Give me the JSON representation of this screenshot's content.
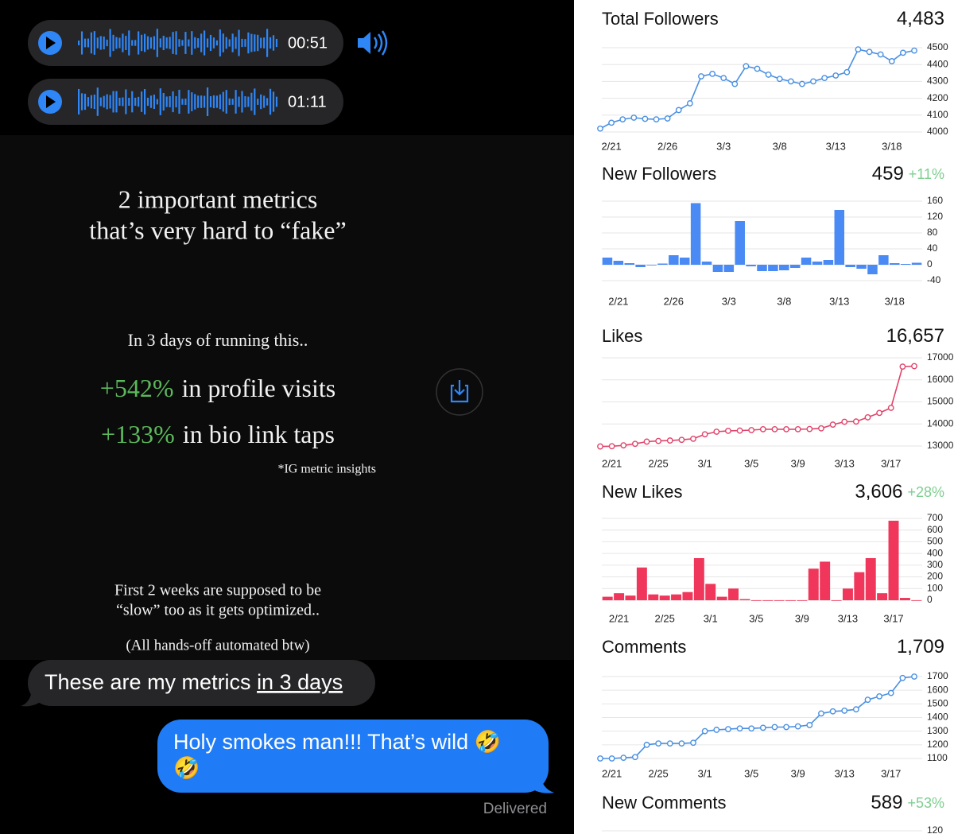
{
  "audio_messages": [
    {
      "duration": "00:51"
    },
    {
      "duration": "01:11"
    }
  ],
  "card": {
    "headline": [
      "2 important metrics",
      "that’s very hard to “fake”"
    ],
    "intro": "In 3 days of running this..",
    "stats": [
      {
        "change": "+542%",
        "label": "in profile visits"
      },
      {
        "change": "+133%",
        "label": "in bio link taps"
      }
    ],
    "footnote": "*IG metric insights",
    "note": [
      "First 2 weeks are supposed to be",
      "“slow” too as it gets optimized.."
    ],
    "aside": "(All hands-off automated btw)"
  },
  "messages": [
    {
      "text": "These are my metrics ",
      "underlined": "in 3 days"
    },
    {
      "lines": [
        "Holy smokes man!!!  That’s wild 🤣",
        "🤣"
      ]
    }
  ],
  "status": "Delivered",
  "chart_data": [
    {
      "type": "line",
      "title": "Total Followers",
      "total": "4,483",
      "color": "#4a90e2",
      "categories": [
        null,
        "2/21",
        null,
        null,
        null,
        null,
        "2/26",
        null,
        null,
        null,
        null,
        "3/3",
        null,
        null,
        null,
        null,
        "3/8",
        null,
        null,
        null,
        null,
        "3/13",
        null,
        null,
        null,
        null,
        "3/18",
        null,
        null
      ],
      "values": [
        4020,
        4055,
        4075,
        4085,
        4078,
        4075,
        4080,
        4130,
        4170,
        4330,
        4345,
        4320,
        4285,
        4390,
        4375,
        4340,
        4315,
        4300,
        4285,
        4300,
        4320,
        4335,
        4355,
        4490,
        4475,
        4460,
        4420,
        4470,
        4483
      ],
      "ylim": [
        4000,
        4500
      ],
      "yticks": [
        4000,
        4100,
        4200,
        4300,
        4400,
        4500
      ],
      "grid": true
    },
    {
      "type": "bar",
      "title": "New Followers",
      "total": "459",
      "change": "+11%",
      "color": "#4a8af4",
      "categories": [
        null,
        "2/21",
        null,
        null,
        null,
        null,
        "2/26",
        null,
        null,
        null,
        null,
        "3/3",
        null,
        null,
        null,
        null,
        "3/8",
        null,
        null,
        null,
        null,
        "3/13",
        null,
        null,
        null,
        null,
        "3/18",
        null,
        null
      ],
      "values": [
        18,
        10,
        4,
        -6,
        0,
        3,
        24,
        18,
        155,
        8,
        -18,
        -18,
        110,
        -4,
        -16,
        -16,
        -14,
        -8,
        18,
        8,
        12,
        138,
        -6,
        -10,
        -24,
        24,
        4,
        2,
        5
      ],
      "ylim": [
        -40,
        160
      ],
      "yticks": [
        -40,
        0,
        40,
        80,
        120,
        160
      ],
      "grid": true
    },
    {
      "type": "line",
      "title": "Likes",
      "total": "16,657",
      "color": "#e0446a",
      "categories": [
        null,
        "2/21",
        null,
        null,
        null,
        "2/25",
        null,
        null,
        null,
        "3/1",
        null,
        null,
        null,
        "3/5",
        null,
        null,
        null,
        "3/9",
        null,
        null,
        null,
        "3/13",
        null,
        null,
        null,
        "3/17",
        null,
        null
      ],
      "values": [
        12980,
        12990,
        13030,
        13100,
        13200,
        13230,
        13250,
        13280,
        13330,
        13530,
        13650,
        13690,
        13700,
        13720,
        13760,
        13760,
        13760,
        13760,
        13770,
        13800,
        13970,
        14100,
        14110,
        14300,
        14500,
        14730,
        16600,
        16620
      ],
      "ylim": [
        13000,
        17000
      ],
      "yticks": [
        13000,
        14000,
        15000,
        16000,
        17000
      ],
      "grid": true
    },
    {
      "type": "bar",
      "title": "New Likes",
      "total": "3,606",
      "change": "+28%",
      "color": "#f0365a",
      "categories": [
        null,
        "2/21",
        null,
        null,
        null,
        "2/25",
        null,
        null,
        null,
        "3/1",
        null,
        null,
        null,
        "3/5",
        null,
        null,
        null,
        "3/9",
        null,
        null,
        null,
        "3/13",
        null,
        null,
        null,
        "3/17",
        null,
        null
      ],
      "values": [
        30,
        60,
        40,
        280,
        50,
        40,
        50,
        70,
        360,
        140,
        30,
        100,
        10,
        0,
        0,
        0,
        0,
        0,
        270,
        330,
        0,
        100,
        240,
        360,
        60,
        680,
        20,
        0
      ],
      "ylim": [
        0,
        700
      ],
      "yticks": [
        0,
        100,
        200,
        300,
        400,
        500,
        600,
        700
      ],
      "grid": true
    },
    {
      "type": "line",
      "title": "Comments",
      "total": "1,709",
      "color": "#4a90e2",
      "categories": [
        null,
        "2/21",
        null,
        null,
        null,
        "2/25",
        null,
        null,
        null,
        "3/1",
        null,
        null,
        null,
        "3/5",
        null,
        null,
        null,
        "3/9",
        null,
        null,
        null,
        "3/13",
        null,
        null,
        null,
        "3/17",
        null,
        null
      ],
      "values": [
        1100,
        1100,
        1105,
        1110,
        1200,
        1210,
        1210,
        1210,
        1215,
        1300,
        1310,
        1315,
        1320,
        1320,
        1325,
        1330,
        1330,
        1335,
        1345,
        1430,
        1445,
        1450,
        1460,
        1530,
        1555,
        1580,
        1690,
        1700
      ],
      "ylim": [
        1100,
        1700
      ],
      "yticks": [
        1100,
        1200,
        1300,
        1400,
        1500,
        1600,
        1700
      ],
      "grid": true
    },
    {
      "type": "bar",
      "title": "New Comments",
      "total": "589",
      "change": "+53%",
      "color": "#4a8af4",
      "yticks": [
        120
      ],
      "grid": true
    }
  ]
}
